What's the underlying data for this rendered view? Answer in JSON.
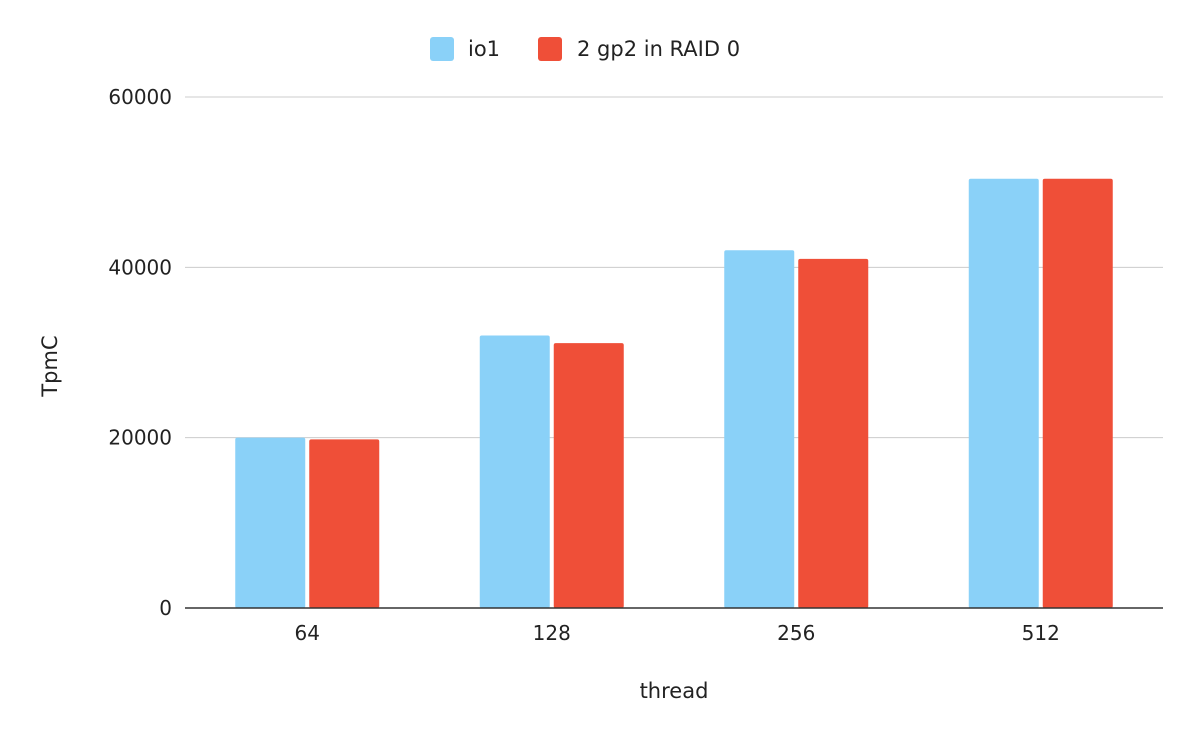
{
  "chart_data": {
    "type": "bar",
    "title": "",
    "xlabel": "thread",
    "ylabel": "TpmC",
    "categories": [
      "64",
      "128",
      "256",
      "512"
    ],
    "series": [
      {
        "name": "io1",
        "color": "#8ad1f8",
        "values": [
          20000,
          32000,
          42000,
          50400
        ]
      },
      {
        "name": "2 gp2 in RAID 0",
        "color": "#ef4f38",
        "values": [
          19800,
          31100,
          41000,
          50400
        ]
      }
    ],
    "ylim": [
      0,
      60000
    ],
    "yticks": [
      "0",
      "20000",
      "40000",
      "60000"
    ],
    "grid": true,
    "legend_position": "top-center",
    "colors": {
      "gridline": "#cccccc",
      "axis": "#333333",
      "text": "#222222"
    }
  }
}
